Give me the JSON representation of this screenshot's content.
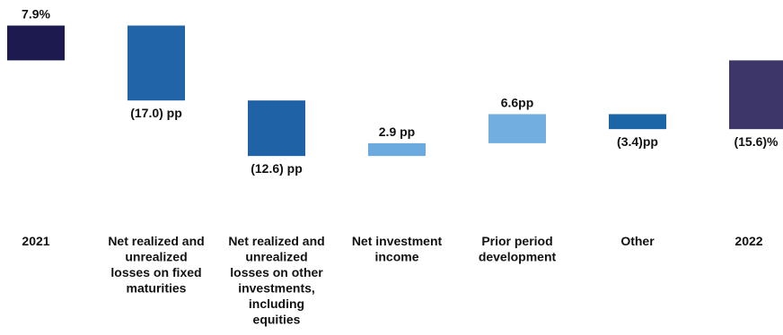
{
  "chart_data": {
    "type": "bar",
    "subtype": "waterfall",
    "title": "",
    "xlabel": "",
    "ylabel": "",
    "grid": false,
    "legend": "none",
    "categories": [
      "2021",
      "Net realized and unrealized losses on fixed maturities",
      "Net realized and unrealized losses on other investments, including equities",
      "Net investment income",
      "Prior period development",
      "Other",
      "2022"
    ],
    "category_lines": [
      [
        "2021"
      ],
      [
        "Net realized and",
        "unrealized",
        "losses on fixed",
        "maturities"
      ],
      [
        "Net realized and",
        "unrealized",
        "losses on other",
        "investments,",
        "including",
        "equities"
      ],
      [
        "Net investment",
        "income"
      ],
      [
        "Prior period",
        "development"
      ],
      [
        "Other"
      ],
      [
        "2022"
      ]
    ],
    "values": [
      7.9,
      -17.0,
      -12.6,
      2.9,
      6.6,
      -3.4,
      -15.6
    ],
    "bar_kinds": [
      "total",
      "delta",
      "delta",
      "delta",
      "delta",
      "delta",
      "total"
    ],
    "data_labels": [
      "7.9%",
      "(17.0) pp",
      "(12.6) pp",
      "2.9 pp",
      "6.6pp",
      "(3.4)pp",
      "(15.6)%"
    ],
    "colors": [
      "#1c1a4f",
      "#2264a8",
      "#1f62a6",
      "#6aaade",
      "#72aee0",
      "#1c66a8",
      "#3c3768"
    ]
  }
}
